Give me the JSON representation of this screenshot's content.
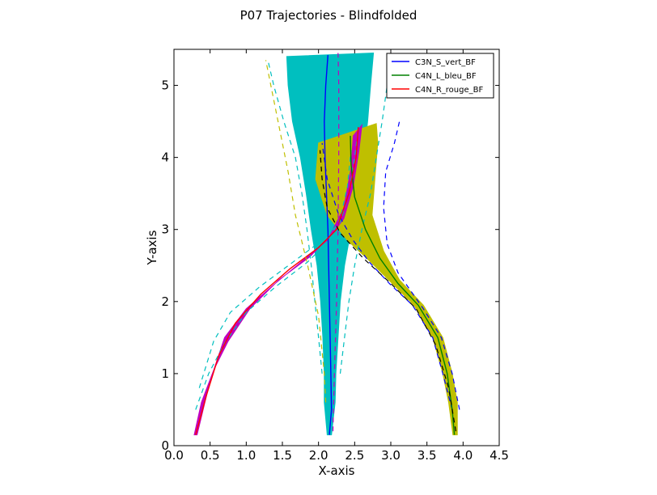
{
  "chart_data": {
    "type": "line",
    "title": "P07 Trajectories - Blindfolded",
    "xlabel": "X-axis",
    "ylabel": "Y-axis",
    "xlim": [
      0.0,
      4.5
    ],
    "ylim": [
      0,
      5.5
    ],
    "xticks": [
      "0.0",
      "0.5",
      "1.0",
      "1.5",
      "2.0",
      "2.5",
      "3.0",
      "3.5",
      "4.0",
      "4.5"
    ],
    "yticks": [
      "0",
      "1",
      "2",
      "3",
      "4",
      "5"
    ],
    "grid": false,
    "legend_position": "top-right",
    "series": [
      {
        "name": "C3N_S_vert_BF",
        "color": "#0000ff",
        "points": [
          [
            2.15,
            0.15
          ],
          [
            2.18,
            0.5
          ],
          [
            2.17,
            1.0
          ],
          [
            2.16,
            1.5
          ],
          [
            2.15,
            2.0
          ],
          [
            2.14,
            2.5
          ],
          [
            2.13,
            3.0
          ],
          [
            2.11,
            3.5
          ],
          [
            2.09,
            4.0
          ],
          [
            2.08,
            4.5
          ],
          [
            2.1,
            5.0
          ],
          [
            2.13,
            5.42
          ]
        ],
        "envelope": {
          "color": "#00bfbf",
          "upper": [
            [
              2.18,
              0.15
            ],
            [
              2.23,
              0.6
            ],
            [
              2.24,
              1.0
            ],
            [
              2.27,
              1.5
            ],
            [
              2.3,
              2.0
            ],
            [
              2.36,
              2.5
            ],
            [
              2.45,
              3.0
            ],
            [
              2.55,
              3.5
            ],
            [
              2.62,
              4.0
            ],
            [
              2.68,
              4.5
            ],
            [
              2.72,
              5.0
            ],
            [
              2.76,
              5.45
            ]
          ],
          "lower": [
            [
              2.12,
              0.15
            ],
            [
              2.08,
              0.6
            ],
            [
              2.08,
              1.0
            ],
            [
              2.06,
              1.5
            ],
            [
              2.03,
              2.0
            ],
            [
              1.98,
              2.5
            ],
            [
              1.9,
              3.0
            ],
            [
              1.83,
              3.5
            ],
            [
              1.75,
              4.0
            ],
            [
              1.64,
              4.5
            ],
            [
              1.58,
              5.0
            ],
            [
              1.56,
              5.4
            ]
          ]
        },
        "dashed_bounds": {
          "color": "#00bfbf",
          "upper": [
            [
              2.3,
              1.0
            ],
            [
              2.36,
              1.5
            ],
            [
              2.42,
              2.0
            ],
            [
              2.5,
              2.5
            ],
            [
              2.6,
              3.0
            ],
            [
              2.72,
              3.5
            ],
            [
              2.8,
              4.0
            ],
            [
              2.88,
              4.5
            ],
            [
              2.95,
              5.0
            ],
            [
              3.0,
              5.4
            ]
          ],
          "lower": [
            [
              2.05,
              1.0
            ],
            [
              2.0,
              1.5
            ],
            [
              1.95,
              2.0
            ],
            [
              1.9,
              2.5
            ],
            [
              1.84,
              3.0
            ],
            [
              1.77,
              3.5
            ],
            [
              1.68,
              4.0
            ],
            [
              1.52,
              4.5
            ],
            [
              1.38,
              5.0
            ],
            [
              1.3,
              5.35
            ]
          ]
        }
      },
      {
        "name": "C4N_L_bleu_BF",
        "color": "#008000",
        "points": [
          [
            3.88,
            0.15
          ],
          [
            3.85,
            0.5
          ],
          [
            3.78,
            1.0
          ],
          [
            3.65,
            1.5
          ],
          [
            3.38,
            1.95
          ],
          [
            3.1,
            2.25
          ],
          [
            2.85,
            2.6
          ],
          [
            2.65,
            3.0
          ],
          [
            2.5,
            3.45
          ],
          [
            2.45,
            3.9
          ],
          [
            2.44,
            4.3
          ]
        ],
        "envelope": {
          "color": "#bfbf00",
          "upper": [
            [
              3.92,
              0.15
            ],
            [
              3.92,
              0.6
            ],
            [
              3.85,
              1.0
            ],
            [
              3.72,
              1.5
            ],
            [
              3.45,
              1.95
            ],
            [
              3.12,
              2.3
            ],
            [
              2.9,
              2.7
            ],
            [
              2.74,
              3.2
            ],
            [
              2.78,
              3.7
            ],
            [
              2.82,
              4.2
            ],
            [
              2.8,
              4.47
            ]
          ],
          "lower": [
            [
              3.86,
              0.15
            ],
            [
              3.8,
              0.6
            ],
            [
              3.72,
              1.0
            ],
            [
              3.58,
              1.5
            ],
            [
              3.32,
              1.95
            ],
            [
              3.02,
              2.25
            ],
            [
              2.72,
              2.55
            ],
            [
              2.4,
              2.85
            ],
            [
              2.12,
              3.2
            ],
            [
              1.96,
              3.7
            ],
            [
              2.0,
              4.2
            ]
          ]
        },
        "dashed_bounds": {
          "color": "#0000ff",
          "upper": [
            [
              3.95,
              0.5
            ],
            [
              3.85,
              1.0
            ],
            [
              3.7,
              1.5
            ],
            [
              3.45,
              1.9
            ],
            [
              3.1,
              2.4
            ],
            [
              2.95,
              2.8
            ],
            [
              2.9,
              3.3
            ],
            [
              2.93,
              3.8
            ],
            [
              3.05,
              4.2
            ],
            [
              3.12,
              4.5
            ]
          ],
          "lower": [
            [
              3.85,
              0.5
            ],
            [
              3.72,
              1.0
            ],
            [
              3.58,
              1.5
            ],
            [
              3.3,
              1.95
            ],
            [
              2.98,
              2.25
            ],
            [
              2.7,
              2.55
            ],
            [
              2.48,
              2.85
            ],
            [
              2.28,
              3.2
            ],
            [
              2.12,
              3.7
            ],
            [
              2.05,
              4.2
            ]
          ]
        }
      },
      {
        "name": "C4N_R_rouge_BF",
        "color": "#ff0000",
        "points": [
          [
            0.3,
            0.15
          ],
          [
            0.45,
            0.7
          ],
          [
            0.62,
            1.25
          ],
          [
            0.85,
            1.7
          ],
          [
            1.2,
            2.1
          ],
          [
            1.6,
            2.45
          ],
          [
            2.0,
            2.75
          ],
          [
            2.25,
            3.0
          ],
          [
            2.42,
            3.5
          ],
          [
            2.52,
            4.0
          ],
          [
            2.55,
            4.42
          ]
        ],
        "envelope": {
          "color": "#bf00bf",
          "upper": [
            [
              0.32,
              0.15
            ],
            [
              0.5,
              0.9
            ],
            [
              0.7,
              1.5
            ],
            [
              1.0,
              1.9
            ],
            [
              1.4,
              2.25
            ],
            [
              1.82,
              2.6
            ],
            [
              2.12,
              2.85
            ],
            [
              2.35,
              3.15
            ],
            [
              2.48,
              3.6
            ],
            [
              2.56,
              4.1
            ],
            [
              2.6,
              4.45
            ]
          ],
          "lower": [
            [
              0.28,
              0.15
            ],
            [
              0.38,
              0.6
            ],
            [
              0.55,
              1.05
            ],
            [
              0.75,
              1.45
            ],
            [
              1.05,
              1.9
            ],
            [
              1.45,
              2.3
            ],
            [
              1.88,
              2.62
            ],
            [
              2.15,
              2.9
            ],
            [
              2.35,
              3.3
            ],
            [
              2.45,
              3.85
            ],
            [
              2.48,
              4.3
            ]
          ]
        },
        "dashed_bounds": {
          "color": "#00bfbf",
          "upper": [
            [
              0.35,
              0.8
            ],
            [
              0.55,
              1.45
            ],
            [
              0.78,
              1.85
            ],
            [
              1.18,
              2.2
            ],
            [
              1.65,
              2.55
            ],
            [
              2.05,
              2.85
            ],
            [
              2.3,
              3.1
            ],
            [
              2.42,
              3.5
            ],
            [
              2.5,
              4.0
            ],
            [
              2.55,
              4.4
            ]
          ],
          "lower": [
            [
              0.3,
              0.5
            ],
            [
              0.48,
              1.0
            ],
            [
              0.7,
              1.42
            ],
            [
              1.0,
              1.85
            ],
            [
              1.4,
              2.2
            ],
            [
              1.85,
              2.55
            ],
            [
              2.12,
              2.82
            ],
            [
              2.3,
              3.15
            ],
            [
              2.4,
              3.6
            ],
            [
              2.45,
              4.1
            ]
          ]
        }
      },
      {
        "name": "",
        "color": "#bfbf00",
        "style": "dashed",
        "points": [
          [
            2.1,
            0.6
          ],
          [
            2.08,
            1.0
          ],
          [
            2.0,
            1.8
          ],
          [
            1.85,
            2.5
          ],
          [
            1.68,
            3.2
          ],
          [
            1.58,
            3.8
          ],
          [
            1.48,
            4.3
          ],
          [
            1.38,
            4.8
          ],
          [
            1.27,
            5.35
          ]
        ]
      },
      {
        "name": "",
        "color": "#000000",
        "style": "dashed",
        "points": [
          [
            3.9,
            0.2
          ],
          [
            3.8,
            0.8
          ],
          [
            3.62,
            1.4
          ],
          [
            3.35,
            1.9
          ],
          [
            3.0,
            2.25
          ],
          [
            2.62,
            2.6
          ],
          [
            2.3,
            2.95
          ],
          [
            2.12,
            3.3
          ],
          [
            2.05,
            3.7
          ],
          [
            2.02,
            4.1
          ]
        ]
      },
      {
        "name": "",
        "color": "#bf00bf",
        "style": "dashed",
        "points": [
          [
            2.2,
            0.2
          ],
          [
            2.22,
            1.0
          ],
          [
            2.25,
            2.0
          ],
          [
            2.27,
            3.0
          ],
          [
            2.28,
            4.0
          ],
          [
            2.28,
            5.0
          ],
          [
            2.27,
            5.45
          ]
        ]
      }
    ]
  }
}
